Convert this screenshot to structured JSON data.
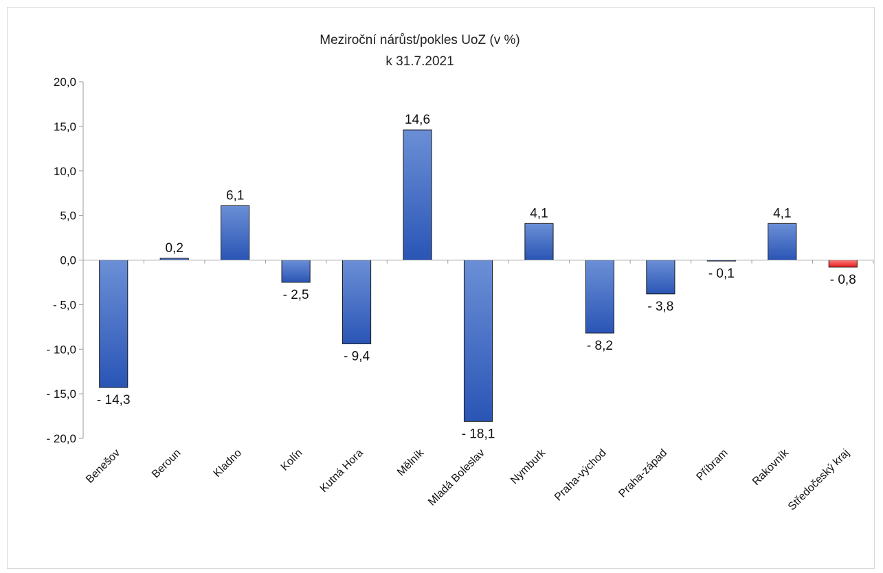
{
  "chart_data": {
    "type": "bar",
    "title": "Meziroční nárůst/pokles UoZ (v %)",
    "subtitle": "k 31.7.2021",
    "categories": [
      "Benešov",
      "Beroun",
      "Kladno",
      "Kolín",
      "Kutná Hora",
      "Mělník",
      "Mladá Boleslav",
      "Nymburk",
      "Praha-východ",
      "Praha-západ",
      "Příbram",
      "Rakovník",
      "Středočeský kraj"
    ],
    "values": [
      -14.3,
      0.2,
      6.1,
      -2.5,
      -9.4,
      14.6,
      -18.1,
      4.1,
      -8.2,
      -3.8,
      -0.1,
      4.1,
      -0.8
    ],
    "value_labels": [
      "- 14,3",
      "0,2",
      "6,1",
      "- 2,5",
      "- 9,4",
      "14,6",
      "- 18,1",
      "4,1",
      "- 8,2",
      "- 3,8",
      "- 0,1",
      "4,1",
      "- 0,8"
    ],
    "highlight_index": 12,
    "ylim": [
      -20,
      20
    ],
    "yticks": [
      20,
      15,
      10,
      5,
      0,
      -5,
      -10,
      -15,
      -20
    ],
    "ytick_labels": [
      "20,0",
      "15,0",
      "10,0",
      "5,0",
      "0,0",
      "- 5,0",
      "- 10,0",
      "- 15,0",
      "- 20,0"
    ],
    "xlabel": "",
    "ylabel": "",
    "grid": false,
    "legend": "none",
    "colors": {
      "bar_top": "#6b8fd6",
      "bar_bottom": "#2a55b5",
      "bar_stroke": "#1b1b1b",
      "highlight_top": "#ff7a7a",
      "highlight_bottom": "#e31c1c",
      "axis": "#9a9a9a"
    }
  }
}
